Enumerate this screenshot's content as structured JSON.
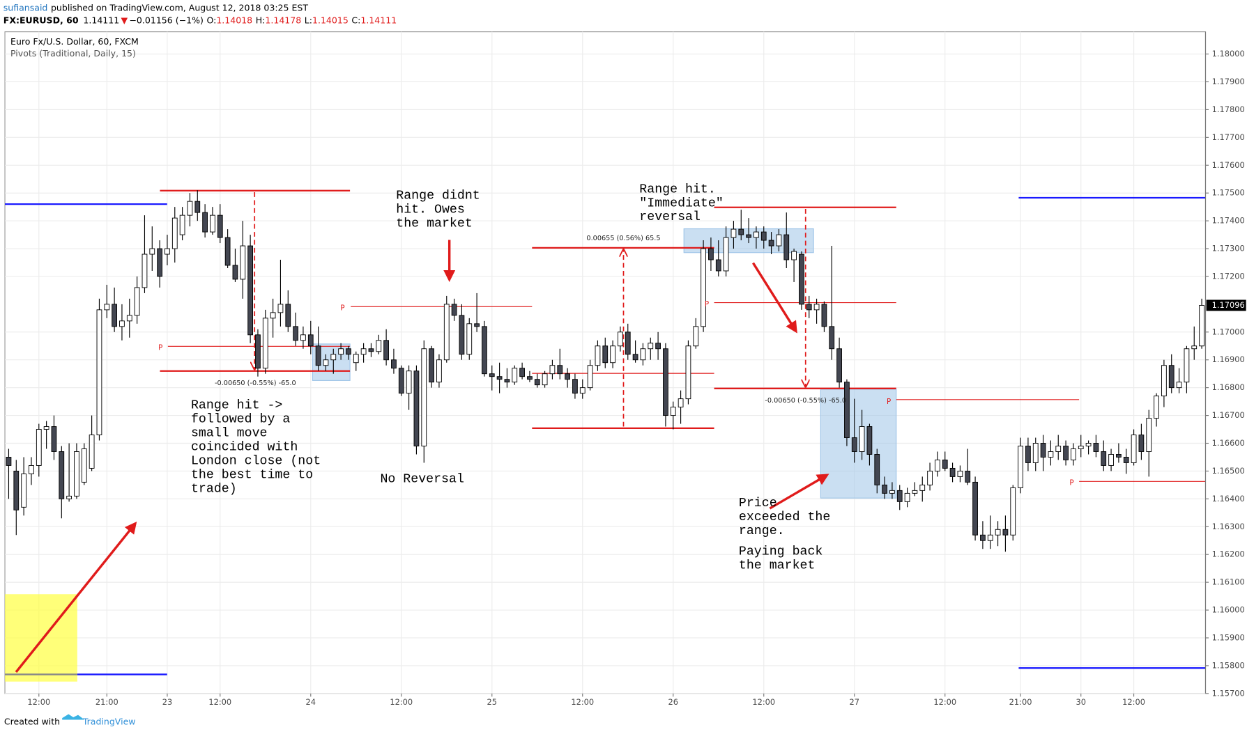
{
  "header": {
    "user": "sufiansaid",
    "published": "published on TradingView.com, August 12, 2018 03:25 EST",
    "symbol": "FX:EURUSD, 60",
    "price": "1.14111",
    "arrow": "▼",
    "change": "−0.01156 (−1%)",
    "ohlc_keys": [
      "O:",
      "H:",
      "L:",
      "C:"
    ],
    "ohlc_values": [
      "1.14018",
      "1.14178",
      "1.14015",
      "1.14111"
    ]
  },
  "chart_data": {
    "type": "candlestick",
    "title": "Euro Fx/U.S. Dollar, 60, FXCM",
    "subtitle": "Pivots (Traditional, Daily, 15)",
    "up_color": "#ffffff",
    "down_color": "#434651",
    "wick_color": "#000000",
    "grid": true,
    "xlim": [
      -0.5,
      158.5
    ],
    "ylim": [
      1.157,
      1.1808
    ],
    "xticks": [
      {
        "value": 4,
        "label": "12:00"
      },
      {
        "value": 13,
        "label": "21:00"
      },
      {
        "value": 21,
        "label": "23"
      },
      {
        "value": 28,
        "label": "12:00"
      },
      {
        "value": 40,
        "label": "24"
      },
      {
        "value": 52,
        "label": "12:00"
      },
      {
        "value": 64,
        "label": "25"
      },
      {
        "value": 76,
        "label": "12:00"
      },
      {
        "value": 88,
        "label": "26"
      },
      {
        "value": 100,
        "label": "12:00"
      },
      {
        "value": 112,
        "label": "27"
      },
      {
        "value": 124,
        "label": "12:00"
      },
      {
        "value": 134,
        "label": "21:00"
      },
      {
        "value": 142,
        "label": "30"
      },
      {
        "value": 149,
        "label": "12:00"
      }
    ],
    "yticks": [
      {
        "value": 1.157,
        "label": "1.15700"
      },
      {
        "value": 1.158,
        "label": "1.15800"
      },
      {
        "value": 1.159,
        "label": "1.15900"
      },
      {
        "value": 1.16,
        "label": "1.16000"
      },
      {
        "value": 1.161,
        "label": "1.16100"
      },
      {
        "value": 1.162,
        "label": "1.16200"
      },
      {
        "value": 1.163,
        "label": "1.16300"
      },
      {
        "value": 1.164,
        "label": "1.16400"
      },
      {
        "value": 1.165,
        "label": "1.16500"
      },
      {
        "value": 1.166,
        "label": "1.16600"
      },
      {
        "value": 1.167,
        "label": "1.16700"
      },
      {
        "value": 1.168,
        "label": "1.16800"
      },
      {
        "value": 1.169,
        "label": "1.16900"
      },
      {
        "value": 1.17,
        "label": "1.17000"
      },
      {
        "value": 1.172,
        "label": "1.17200"
      },
      {
        "value": 1.173,
        "label": "1.17300"
      },
      {
        "value": 1.174,
        "label": "1.17400"
      },
      {
        "value": 1.175,
        "label": "1.17500"
      },
      {
        "value": 1.176,
        "label": "1.17600"
      },
      {
        "value": 1.177,
        "label": "1.17700"
      },
      {
        "value": 1.178,
        "label": "1.17800"
      },
      {
        "value": 1.179,
        "label": "1.17900"
      },
      {
        "value": 1.18,
        "label": "1.18000"
      }
    ],
    "open": [
      1.1655,
      1.165,
      1.1637,
      1.1649,
      1.1652,
      1.1665,
      1.1666,
      1.1657,
      1.164,
      1.1641,
      1.1646,
      1.1651,
      1.1663,
      1.1708,
      1.171,
      1.1702,
      1.1704,
      1.1706,
      1.1716,
      1.1728,
      1.173,
      1.1728,
      1.173,
      1.1735,
      1.1742,
      1.1747,
      1.1743,
      1.1736,
      1.1742,
      1.1734,
      1.1724,
      1.1719,
      1.1731,
      1.1699,
      1.1687,
      1.1705,
      1.1707,
      1.171,
      1.1702,
      1.1697,
      1.1699,
      1.1695,
      1.1688,
      1.169,
      1.1692,
      1.1694,
      1.1689,
      1.1692,
      1.1694,
      1.1693,
      1.1697,
      1.169,
      1.1687,
      1.1678,
      1.1686,
      1.1659,
      1.1694,
      1.1682,
      1.169,
      1.171,
      1.1706,
      1.1692,
      1.1703,
      1.1702,
      1.1685,
      1.1684,
      1.1683,
      1.1682,
      1.1687,
      1.1684,
      1.1683,
      1.1681,
      1.1685,
      1.1688,
      1.1685,
      1.1683,
      1.1678,
      1.168,
      1.1688,
      1.1695,
      1.1689,
      1.1695,
      1.17,
      1.1692,
      1.169,
      1.1694,
      1.1696,
      1.1694,
      1.167,
      1.1673,
      1.1676,
      1.1695,
      1.1702,
      1.173,
      1.1726,
      1.1722,
      1.1734,
      1.1737,
      1.1735,
      1.1734,
      1.1736,
      1.1733,
      1.1731,
      1.1735,
      1.1726,
      1.1728,
      1.171,
      1.1708,
      1.171,
      1.1702,
      1.1694,
      1.1682,
      1.1662,
      1.1657,
      1.1666,
      1.1656,
      1.1645,
      1.1642,
      1.1643,
      1.1639,
      1.1642,
      1.1643,
      1.1645,
      1.165,
      1.1654,
      1.1651,
      1.1648,
      1.165,
      1.1646,
      1.1627,
      1.1625,
      1.1627,
      1.1629,
      1.1627,
      1.1644,
      1.1659,
      1.1653,
      1.166,
      1.1655,
      1.1657,
      1.1659,
      1.1654,
      1.1658,
      1.1659,
      1.166,
      1.1657,
      1.1652,
      1.1656,
      1.1655,
      1.1653,
      1.1663,
      1.1657,
      1.1669,
      1.1677,
      1.1688,
      1.168,
      1.1682,
      1.1694,
      1.1695
    ],
    "high": [
      1.1658,
      1.1654,
      1.1655,
      1.1655,
      1.1667,
      1.1668,
      1.167,
      1.1659,
      1.166,
      1.166,
      1.166,
      1.167,
      1.1712,
      1.1717,
      1.1716,
      1.171,
      1.1712,
      1.172,
      1.1742,
      1.1738,
      1.1733,
      1.1735,
      1.1745,
      1.1745,
      1.175,
      1.1751,
      1.1746,
      1.1745,
      1.1746,
      1.1737,
      1.173,
      1.174,
      1.1735,
      1.1701,
      1.1708,
      1.1712,
      1.1726,
      1.1715,
      1.1707,
      1.1702,
      1.1704,
      1.1702,
      1.1692,
      1.1694,
      1.1696,
      1.1695,
      1.1693,
      1.1696,
      1.1696,
      1.1699,
      1.1701,
      1.1694,
      1.1688,
      1.1688,
      1.1688,
      1.1697,
      1.1695,
      1.1692,
      1.1713,
      1.1712,
      1.171,
      1.1705,
      1.1714,
      1.1704,
      1.1688,
      1.1689,
      1.1687,
      1.1688,
      1.1689,
      1.1686,
      1.1685,
      1.1686,
      1.169,
      1.1694,
      1.1687,
      1.1685,
      1.1683,
      1.169,
      1.1697,
      1.1698,
      1.1697,
      1.1702,
      1.1703,
      1.1697,
      1.1696,
      1.1698,
      1.17,
      1.1696,
      1.1675,
      1.1679,
      1.1697,
      1.1705,
      1.1733,
      1.1734,
      1.1733,
      1.1738,
      1.174,
      1.1744,
      1.1741,
      1.1738,
      1.1738,
      1.1736,
      1.1737,
      1.1743,
      1.173,
      1.1729,
      1.1713,
      1.1712,
      1.1711,
      1.1731,
      1.1698,
      1.1683,
      1.1676,
      1.1672,
      1.1667,
      1.1658,
      1.1648,
      1.1646,
      1.1645,
      1.1644,
      1.1646,
      1.1648,
      1.1653,
      1.1657,
      1.1657,
      1.1653,
      1.1652,
      1.1658,
      1.1648,
      1.1632,
      1.1634,
      1.1632,
      1.1634,
      1.1645,
      1.1662,
      1.1662,
      1.1662,
      1.1663,
      1.1661,
      1.1663,
      1.1661,
      1.166,
      1.1663,
      1.1661,
      1.1663,
      1.1661,
      1.1658,
      1.166,
      1.1658,
      1.1665,
      1.1667,
      1.1672,
      1.1678,
      1.169,
      1.1692,
      1.1687,
      1.1695,
      1.1702,
      1.1712
    ],
    "low": [
      1.164,
      1.1627,
      1.1634,
      1.1645,
      1.1648,
      1.1658,
      1.1654,
      1.1633,
      1.1639,
      1.164,
      1.1645,
      1.165,
      1.1661,
      1.1705,
      1.17,
      1.1697,
      1.1698,
      1.1703,
      1.1714,
      1.1722,
      1.1716,
      1.1724,
      1.1725,
      1.1733,
      1.1738,
      1.174,
      1.1734,
      1.1735,
      1.1732,
      1.1723,
      1.1718,
      1.1712,
      1.1696,
      1.1684,
      1.1685,
      1.1698,
      1.1702,
      1.17,
      1.1695,
      1.1694,
      1.1692,
      1.1686,
      1.1686,
      1.1685,
      1.169,
      1.169,
      1.1686,
      1.1689,
      1.1691,
      1.1692,
      1.1688,
      1.1685,
      1.1677,
      1.1672,
      1.1656,
      1.1653,
      1.168,
      1.168,
      1.1689,
      1.1704,
      1.169,
      1.169,
      1.17,
      1.1684,
      1.1679,
      1.1678,
      1.168,
      1.1681,
      1.1683,
      1.1682,
      1.168,
      1.168,
      1.1683,
      1.1683,
      1.168,
      1.1676,
      1.1676,
      1.1679,
      1.1686,
      1.1687,
      1.1687,
      1.1693,
      1.169,
      1.1689,
      1.1688,
      1.169,
      1.169,
      1.1666,
      1.1665,
      1.1667,
      1.1674,
      1.1694,
      1.17,
      1.1722,
      1.172,
      1.172,
      1.173,
      1.1733,
      1.1732,
      1.173,
      1.173,
      1.1728,
      1.1729,
      1.1723,
      1.1718,
      1.1708,
      1.1705,
      1.1703,
      1.17,
      1.169,
      1.168,
      1.1659,
      1.1653,
      1.1654,
      1.1652,
      1.1642,
      1.164,
      1.164,
      1.1636,
      1.1637,
      1.1641,
      1.1639,
      1.1643,
      1.1648,
      1.165,
      1.1646,
      1.1646,
      1.1645,
      1.1625,
      1.1622,
      1.1622,
      1.1623,
      1.1621,
      1.1625,
      1.1642,
      1.165,
      1.165,
      1.165,
      1.1652,
      1.1654,
      1.1652,
      1.1652,
      1.1655,
      1.1656,
      1.1655,
      1.165,
      1.165,
      1.1653,
      1.1649,
      1.1652,
      1.1654,
      1.1648,
      1.1666,
      1.1673,
      1.1678,
      1.1678,
      1.1678,
      1.169,
      1.1694
    ],
    "close": [
      1.1652,
      1.1636,
      1.1649,
      1.1652,
      1.1665,
      1.1666,
      1.1657,
      1.164,
      1.1641,
      1.1657,
      1.1658,
      1.1663,
      1.1708,
      1.171,
      1.1702,
      1.1704,
      1.1706,
      1.1716,
      1.1728,
      1.173,
      1.172,
      1.173,
      1.1741,
      1.1742,
      1.1747,
      1.1743,
      1.1736,
      1.1742,
      1.1734,
      1.1724,
      1.1719,
      1.1731,
      1.1699,
      1.1687,
      1.1705,
      1.1707,
      1.171,
      1.1702,
      1.1697,
      1.1699,
      1.1695,
      1.1688,
      1.169,
      1.1692,
      1.1694,
      1.1692,
      1.1692,
      1.1694,
      1.1693,
      1.1697,
      1.169,
      1.1687,
      1.1678,
      1.1686,
      1.1659,
      1.1694,
      1.1682,
      1.169,
      1.171,
      1.1706,
      1.1692,
      1.1703,
      1.1702,
      1.1685,
      1.1684,
      1.1683,
      1.1682,
      1.1687,
      1.1684,
      1.1683,
      1.1681,
      1.1685,
      1.1688,
      1.1685,
      1.1683,
      1.1678,
      1.168,
      1.1688,
      1.1695,
      1.1689,
      1.1695,
      1.17,
      1.1692,
      1.169,
      1.1694,
      1.1696,
      1.1694,
      1.167,
      1.1673,
      1.1676,
      1.1695,
      1.1702,
      1.173,
      1.1726,
      1.1722,
      1.1734,
      1.1737,
      1.1735,
      1.1734,
      1.1736,
      1.1733,
      1.1731,
      1.1735,
      1.1726,
      1.1729,
      1.171,
      1.1708,
      1.171,
      1.1702,
      1.1694,
      1.1682,
      1.1662,
      1.1657,
      1.1666,
      1.1656,
      1.1645,
      1.1642,
      1.1643,
      1.1639,
      1.1642,
      1.1643,
      1.1645,
      1.165,
      1.1654,
      1.1651,
      1.1648,
      1.165,
      1.1646,
      1.1627,
      1.1625,
      1.1627,
      1.1629,
      1.1627,
      1.1644,
      1.1659,
      1.1653,
      1.166,
      1.1655,
      1.1657,
      1.1659,
      1.1654,
      1.1658,
      1.1659,
      1.166,
      1.1657,
      1.1652,
      1.1656,
      1.1655,
      1.1653,
      1.1663,
      1.1657,
      1.1669,
      1.1677,
      1.1688,
      1.168,
      1.1682,
      1.1694,
      1.1695,
      1.17096
    ]
  },
  "drawings": {
    "pivot_labels": [
      "P",
      "P",
      "P",
      "P",
      "P"
    ],
    "range_labels": [
      "-0.00650 (-0.55%) -65.0",
      "0.00655 (0.56%) 65.5",
      "-0.00650 (-0.55%) -65.0"
    ]
  },
  "annotations": [
    [
      "Range hit ->",
      "followed by a",
      "small move",
      "coincided with",
      "London close (not",
      "the best time to",
      "trade)"
    ],
    [
      "Range didnt",
      "hit. Owes",
      "the market"
    ],
    [
      "No Reversal"
    ],
    [
      "Range hit.",
      "\"Immediate\"",
      "reversal"
    ],
    [
      "Price",
      "exceeded the",
      "range."
    ],
    [
      "Paying back",
      "the market"
    ]
  ],
  "footer": {
    "created": "Created with",
    "brand": "TradingView"
  }
}
